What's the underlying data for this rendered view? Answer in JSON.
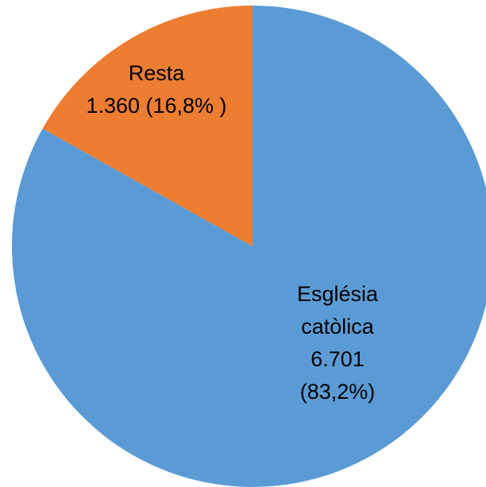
{
  "chart_data": {
    "type": "pie",
    "categories": [
      "Església catòlica",
      "Resta"
    ],
    "values": [
      6701,
      1360
    ],
    "value_labels": [
      "6.701 (83,2%)",
      "1.360 (16,8% )"
    ],
    "colors": [
      "#5b9bd5",
      "#ed7d31"
    ]
  }
}
